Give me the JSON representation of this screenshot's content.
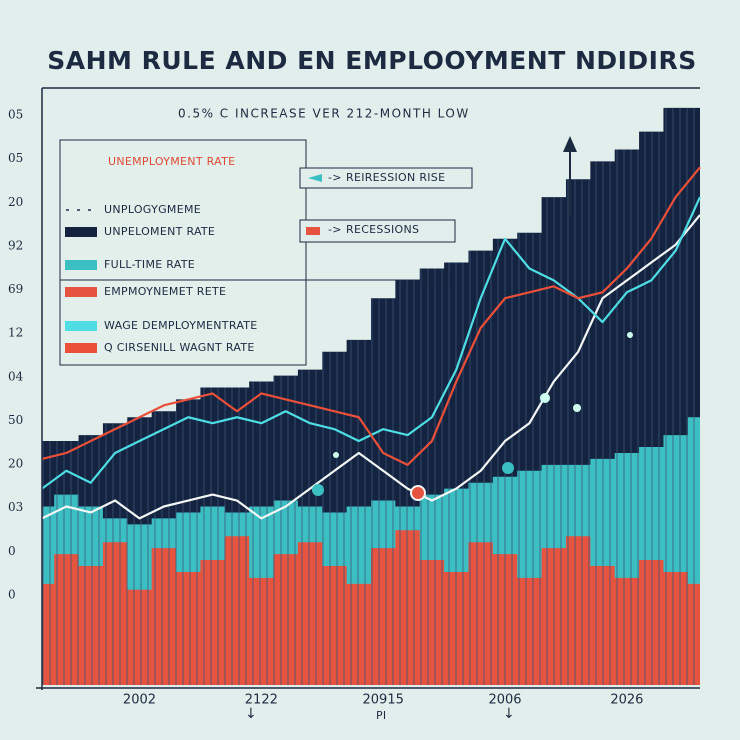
{
  "chart_data": {
    "type": "line",
    "title": "SAHM RULE AND  EN EMPLOOYMENT NDIDIRS",
    "subtitle": "0.5% C INCREASE VER 212-MONTH LOW",
    "legend_title": "UNEMPLOYMENT RATE",
    "annotations": [
      "REIRESSION RISE",
      "RECESSIONS",
      "PI"
    ],
    "y_labels": [
      "05",
      "05",
      "20",
      "92",
      "69",
      "12",
      "04",
      "50",
      "20",
      "03",
      "0",
      "0"
    ],
    "categories": [
      null,
      null,
      null,
      null,
      "2002",
      null,
      null,
      null,
      null,
      "2122",
      null,
      null,
      null,
      null,
      "20915",
      null,
      null,
      null,
      null,
      "2006",
      null,
      null,
      null,
      null,
      "2026",
      null,
      null,
      null
    ],
    "ylim": [
      0,
      100
    ],
    "series": [
      {
        "name": "UNPLOGYGMEME",
        "kind": "line",
        "color": "#f2f6f5",
        "values": [
          28,
          30,
          29,
          31,
          28,
          30,
          31,
          32,
          31,
          28,
          30,
          33,
          36,
          39,
          36,
          33,
          31,
          33,
          36,
          41,
          44,
          51,
          56,
          65,
          68,
          71,
          74,
          79
        ]
      },
      {
        "name": "UNPELOMENT RATE",
        "kind": "area",
        "color": "#14233f",
        "values": [
          41,
          41,
          42,
          44,
          45,
          46,
          48,
          50,
          50,
          51,
          52,
          53,
          56,
          58,
          65,
          68,
          70,
          71,
          73,
          75,
          76,
          82,
          85,
          88,
          90,
          93,
          97,
          97
        ]
      },
      {
        "name": "FULL-TIME RATE",
        "kind": "area",
        "color": "#3bbfc2",
        "values": [
          30,
          32,
          30,
          28,
          27,
          28,
          29,
          30,
          29,
          30,
          31,
          30,
          29,
          30,
          31,
          30,
          32,
          33,
          34,
          35,
          36,
          37,
          37,
          38,
          39,
          40,
          42,
          45
        ]
      },
      {
        "name": "EMPMOYNEMET RETE",
        "kind": "area",
        "color": "#e6533f",
        "values": [
          17,
          22,
          20,
          24,
          16,
          23,
          19,
          21,
          25,
          18,
          22,
          24,
          20,
          17,
          23,
          26,
          21,
          19,
          24,
          22,
          18,
          23,
          25,
          20,
          18,
          21,
          19,
          17
        ]
      },
      {
        "name": "WAGE DEMPLOYMENTRATE",
        "kind": "line",
        "color": "#4fdde4",
        "values": [
          33,
          36,
          34,
          39,
          41,
          43,
          45,
          44,
          45,
          44,
          46,
          44,
          43,
          41,
          43,
          42,
          45,
          53,
          65,
          75,
          70,
          68,
          65,
          61,
          66,
          68,
          73,
          82
        ]
      },
      {
        "name": "Q CIRSENILL WAGNT RATE",
        "kind": "line",
        "color": "#ea4f39",
        "values": [
          38,
          39,
          41,
          43,
          45,
          47,
          48,
          49,
          46,
          49,
          48,
          47,
          46,
          45,
          39,
          37,
          41,
          51,
          60,
          65,
          66,
          67,
          65,
          66,
          70,
          75,
          82,
          87
        ]
      }
    ]
  }
}
